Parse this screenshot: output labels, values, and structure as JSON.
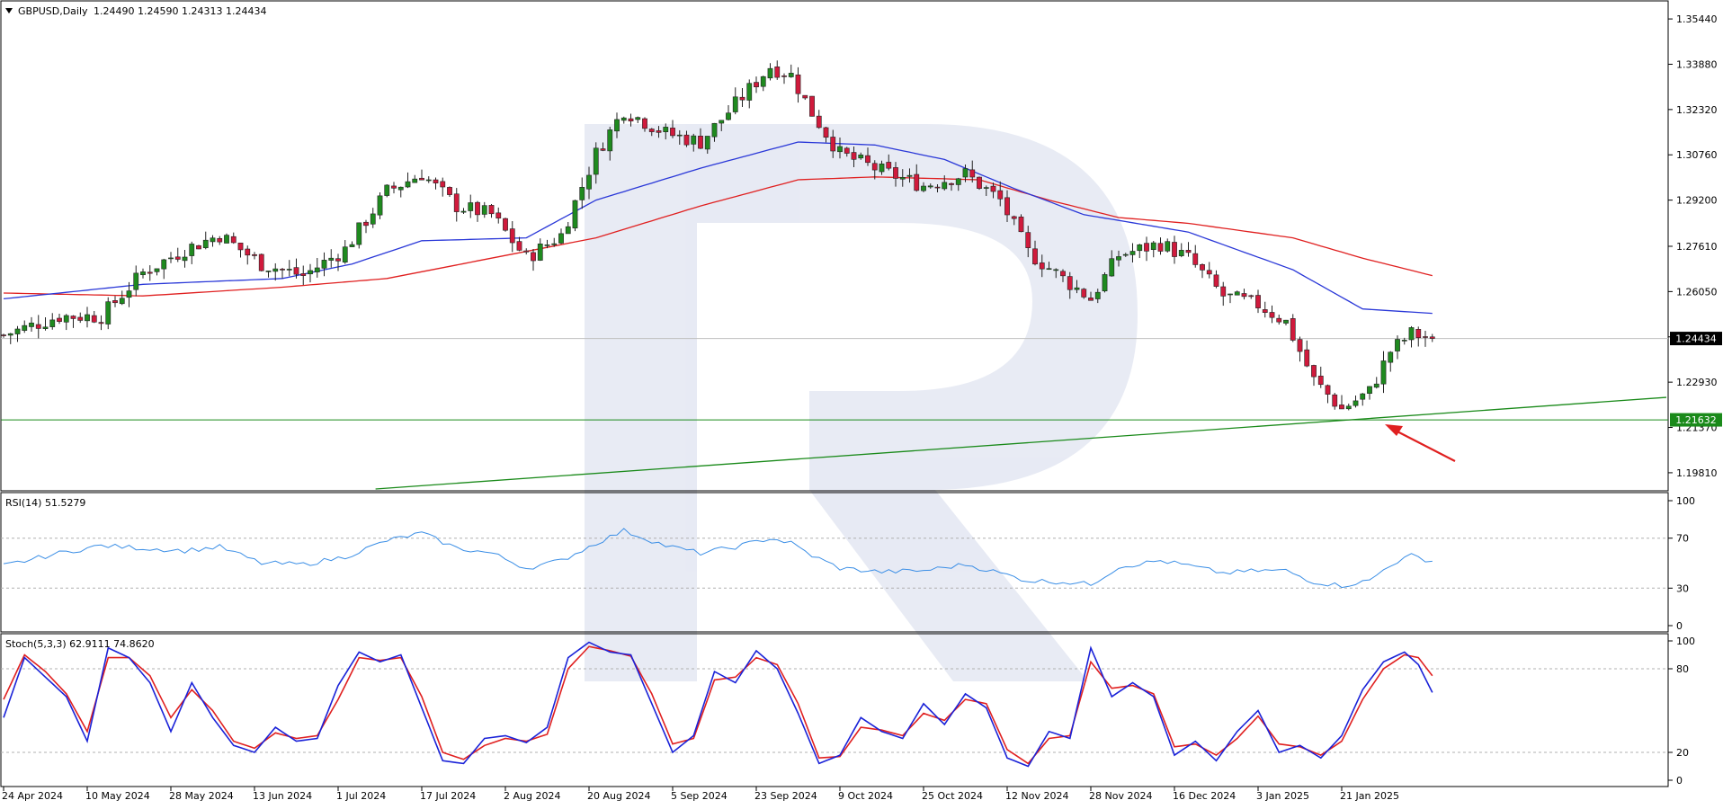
{
  "chart_data": {
    "type": "candlestick",
    "symbol_label": "GBPUSD,Daily",
    "ohlc_label": [
      "1.24490",
      "1.24590",
      "1.24313",
      "1.24434"
    ],
    "current_price": 1.24434,
    "current_price_label": "1.24434",
    "support_level": 1.21632,
    "support_label": "1.21632",
    "price_axis": {
      "ylim": [
        1.1925,
        1.36
      ],
      "ticks": [
        1.3544,
        1.3388,
        1.3232,
        1.3076,
        1.292,
        1.2761,
        1.2605,
        1.2449,
        1.2293,
        1.2137,
        1.1981
      ],
      "tick_labels": [
        "1.35440",
        "1.33880",
        "1.32320",
        "1.30760",
        "1.29200",
        "1.27610",
        "1.26050",
        "1.24490",
        "1.22930",
        "1.21370",
        "1.19810"
      ]
    },
    "date_axis": {
      "labels": [
        "24 Apr 2024",
        "10 May 2024",
        "28 May 2024",
        "13 Jun 2024",
        "1 Jul 2024",
        "17 Jul 2024",
        "2 Aug 2024",
        "20 Aug 2024",
        "5 Sep 2024",
        "23 Sep 2024",
        "9 Oct 2024",
        "25 Oct 2024",
        "12 Nov 2024",
        "28 Nov 2024",
        "16 Dec 2024",
        "3 Jan 2025",
        "21 Jan 2025"
      ],
      "label_bar_index": [
        0,
        12,
        24,
        36,
        48,
        60,
        72,
        84,
        96,
        108,
        120,
        132,
        144,
        156,
        168,
        180,
        192
      ]
    },
    "price_anchors": [
      [
        0,
        1.2455
      ],
      [
        8,
        1.252
      ],
      [
        14,
        1.252
      ],
      [
        20,
        1.267
      ],
      [
        26,
        1.275
      ],
      [
        31,
        1.28
      ],
      [
        37,
        1.27
      ],
      [
        43,
        1.266
      ],
      [
        49,
        1.275
      ],
      [
        55,
        1.295
      ],
      [
        60,
        1.301
      ],
      [
        65,
        1.29
      ],
      [
        70,
        1.287
      ],
      [
        75,
        1.272
      ],
      [
        80,
        1.28
      ],
      [
        85,
        1.308
      ],
      [
        89,
        1.323
      ],
      [
        95,
        1.315
      ],
      [
        100,
        1.312
      ],
      [
        105,
        1.325
      ],
      [
        110,
        1.338
      ],
      [
        113,
        1.335
      ],
      [
        116,
        1.322
      ],
      [
        120,
        1.308
      ],
      [
        126,
        1.302
      ],
      [
        132,
        1.297
      ],
      [
        138,
        1.301
      ],
      [
        143,
        1.292
      ],
      [
        147,
        1.274
      ],
      [
        152,
        1.265
      ],
      [
        156,
        1.258
      ],
      [
        160,
        1.273
      ],
      [
        166,
        1.277
      ],
      [
        170,
        1.272
      ],
      [
        175,
        1.259
      ],
      [
        180,
        1.256
      ],
      [
        184,
        1.25
      ],
      [
        188,
        1.23
      ],
      [
        192,
        1.22
      ],
      [
        196,
        1.226
      ],
      [
        199,
        1.24
      ],
      [
        202,
        1.246
      ],
      [
        205,
        1.2443
      ]
    ],
    "ma_fast_anchors": [
      [
        0,
        1.258
      ],
      [
        20,
        1.263
      ],
      [
        40,
        1.265
      ],
      [
        50,
        1.27
      ],
      [
        60,
        1.278
      ],
      [
        75,
        1.279
      ],
      [
        85,
        1.292
      ],
      [
        100,
        1.303
      ],
      [
        114,
        1.312
      ],
      [
        125,
        1.311
      ],
      [
        135,
        1.306
      ],
      [
        145,
        1.296
      ],
      [
        155,
        1.287
      ],
      [
        170,
        1.281
      ],
      [
        185,
        1.268
      ],
      [
        195,
        1.2545
      ],
      [
        205,
        1.253
      ]
    ],
    "ma_slow_anchors": [
      [
        0,
        1.26
      ],
      [
        20,
        1.259
      ],
      [
        40,
        1.262
      ],
      [
        55,
        1.265
      ],
      [
        70,
        1.272
      ],
      [
        85,
        1.279
      ],
      [
        100,
        1.29
      ],
      [
        114,
        1.299
      ],
      [
        125,
        1.3
      ],
      [
        140,
        1.299
      ],
      [
        150,
        1.292
      ],
      [
        160,
        1.286
      ],
      [
        170,
        1.284
      ],
      [
        185,
        1.279
      ],
      [
        195,
        1.272
      ],
      [
        205,
        1.266
      ]
    ],
    "trendline": {
      "from": [
        -20,
        1.18
      ],
      "to": [
        250,
        1.226
      ]
    },
    "rsi": {
      "label": "RSI(14) 51.5279",
      "period": 14,
      "last_value": 51.5279,
      "levels": [
        30,
        70
      ],
      "ticks": [
        100,
        70,
        30,
        0
      ],
      "anchors": [
        [
          0,
          48
        ],
        [
          8,
          58
        ],
        [
          14,
          64
        ],
        [
          20,
          62
        ],
        [
          26,
          60
        ],
        [
          31,
          63
        ],
        [
          37,
          50
        ],
        [
          43,
          49
        ],
        [
          49,
          55
        ],
        [
          55,
          68
        ],
        [
          60,
          74
        ],
        [
          65,
          62
        ],
        [
          70,
          58
        ],
        [
          75,
          46
        ],
        [
          80,
          52
        ],
        [
          85,
          66
        ],
        [
          89,
          76
        ],
        [
          95,
          64
        ],
        [
          100,
          58
        ],
        [
          105,
          63
        ],
        [
          110,
          70
        ],
        [
          113,
          66
        ],
        [
          116,
          56
        ],
        [
          120,
          46
        ],
        [
          126,
          43
        ],
        [
          132,
          44
        ],
        [
          138,
          49
        ],
        [
          143,
          42
        ],
        [
          147,
          36
        ],
        [
          152,
          35
        ],
        [
          156,
          33
        ],
        [
          160,
          47
        ],
        [
          166,
          52
        ],
        [
          170,
          48
        ],
        [
          175,
          42
        ],
        [
          180,
          44
        ],
        [
          184,
          44
        ],
        [
          188,
          35
        ],
        [
          192,
          32
        ],
        [
          196,
          36
        ],
        [
          199,
          49
        ],
        [
          202,
          56
        ],
        [
          205,
          51.5
        ]
      ]
    },
    "stoch": {
      "label": "Stoch(5,3,3) 62.9111 74.8620",
      "main_value": 62.9111,
      "signal_value": 74.862,
      "levels": [
        20,
        80
      ],
      "ticks": [
        100,
        80,
        20,
        0
      ],
      "k_anchors": [
        [
          0,
          45
        ],
        [
          3,
          88
        ],
        [
          6,
          74
        ],
        [
          9,
          60
        ],
        [
          12,
          28
        ],
        [
          15,
          95
        ],
        [
          18,
          88
        ],
        [
          21,
          70
        ],
        [
          24,
          35
        ],
        [
          27,
          70
        ],
        [
          30,
          45
        ],
        [
          33,
          25
        ],
        [
          36,
          20
        ],
        [
          39,
          38
        ],
        [
          42,
          28
        ],
        [
          45,
          30
        ],
        [
          48,
          68
        ],
        [
          51,
          92
        ],
        [
          54,
          85
        ],
        [
          57,
          90
        ],
        [
          60,
          52
        ],
        [
          63,
          14
        ],
        [
          66,
          12
        ],
        [
          69,
          30
        ],
        [
          72,
          32
        ],
        [
          75,
          27
        ],
        [
          78,
          38
        ],
        [
          81,
          88
        ],
        [
          84,
          99
        ],
        [
          87,
          92
        ],
        [
          90,
          90
        ],
        [
          93,
          55
        ],
        [
          96,
          20
        ],
        [
          99,
          32
        ],
        [
          102,
          78
        ],
        [
          105,
          70
        ],
        [
          108,
          93
        ],
        [
          111,
          80
        ],
        [
          114,
          48
        ],
        [
          117,
          12
        ],
        [
          120,
          18
        ],
        [
          123,
          45
        ],
        [
          126,
          35
        ],
        [
          129,
          30
        ],
        [
          132,
          55
        ],
        [
          135,
          40
        ],
        [
          138,
          62
        ],
        [
          141,
          52
        ],
        [
          144,
          16
        ],
        [
          147,
          10
        ],
        [
          150,
          35
        ],
        [
          153,
          30
        ],
        [
          156,
          95
        ],
        [
          159,
          60
        ],
        [
          162,
          70
        ],
        [
          165,
          60
        ],
        [
          168,
          18
        ],
        [
          171,
          28
        ],
        [
          174,
          14
        ],
        [
          177,
          35
        ],
        [
          180,
          50
        ],
        [
          183,
          20
        ],
        [
          186,
          25
        ],
        [
          189,
          16
        ],
        [
          192,
          32
        ],
        [
          195,
          65
        ],
        [
          198,
          85
        ],
        [
          201,
          92
        ],
        [
          203,
          83
        ],
        [
          205,
          63
        ]
      ],
      "d_anchors": [
        [
          0,
          58
        ],
        [
          3,
          90
        ],
        [
          6,
          78
        ],
        [
          9,
          62
        ],
        [
          12,
          35
        ],
        [
          15,
          88
        ],
        [
          18,
          88
        ],
        [
          21,
          75
        ],
        [
          24,
          45
        ],
        [
          27,
          65
        ],
        [
          30,
          50
        ],
        [
          33,
          28
        ],
        [
          36,
          23
        ],
        [
          39,
          34
        ],
        [
          42,
          30
        ],
        [
          45,
          32
        ],
        [
          48,
          58
        ],
        [
          51,
          88
        ],
        [
          54,
          86
        ],
        [
          57,
          88
        ],
        [
          60,
          60
        ],
        [
          63,
          20
        ],
        [
          66,
          15
        ],
        [
          69,
          25
        ],
        [
          72,
          30
        ],
        [
          75,
          28
        ],
        [
          78,
          33
        ],
        [
          81,
          80
        ],
        [
          84,
          96
        ],
        [
          87,
          93
        ],
        [
          90,
          89
        ],
        [
          93,
          62
        ],
        [
          96,
          26
        ],
        [
          99,
          30
        ],
        [
          102,
          72
        ],
        [
          105,
          74
        ],
        [
          108,
          88
        ],
        [
          111,
          83
        ],
        [
          114,
          55
        ],
        [
          117,
          16
        ],
        [
          120,
          17
        ],
        [
          123,
          38
        ],
        [
          126,
          36
        ],
        [
          129,
          32
        ],
        [
          132,
          48
        ],
        [
          135,
          43
        ],
        [
          138,
          58
        ],
        [
          141,
          55
        ],
        [
          144,
          22
        ],
        [
          147,
          12
        ],
        [
          150,
          30
        ],
        [
          153,
          32
        ],
        [
          156,
          85
        ],
        [
          159,
          66
        ],
        [
          162,
          68
        ],
        [
          165,
          62
        ],
        [
          168,
          24
        ],
        [
          171,
          26
        ],
        [
          174,
          18
        ],
        [
          177,
          30
        ],
        [
          180,
          46
        ],
        [
          183,
          26
        ],
        [
          186,
          24
        ],
        [
          189,
          18
        ],
        [
          192,
          28
        ],
        [
          195,
          58
        ],
        [
          198,
          80
        ],
        [
          201,
          90
        ],
        [
          203,
          88
        ],
        [
          205,
          75
        ]
      ]
    }
  }
}
